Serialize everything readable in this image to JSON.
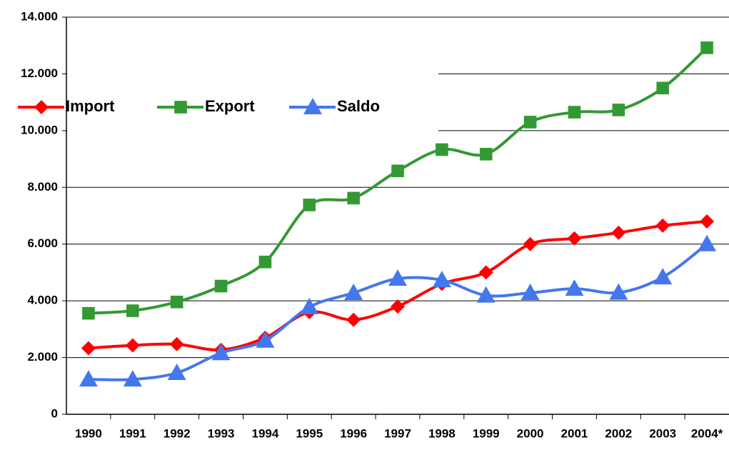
{
  "chart_data": {
    "type": "line",
    "categories": [
      "1990",
      "1991",
      "1992",
      "1993",
      "1994",
      "1995",
      "1996",
      "1997",
      "1998",
      "1999",
      "2000",
      "2001",
      "2002",
      "2003",
      "2004*"
    ],
    "series": [
      {
        "name": "Import",
        "color": "#ff0000",
        "marker": "diamond",
        "values": [
          2330,
          2430,
          2470,
          2270,
          2700,
          3600,
          3330,
          3800,
          4600,
          5000,
          6000,
          6200,
          6400,
          6650,
          6800
        ]
      },
      {
        "name": "Export",
        "color": "#339933",
        "marker": "square",
        "values": [
          3560,
          3650,
          3960,
          4520,
          5370,
          7380,
          7620,
          8580,
          9330,
          9170,
          10300,
          10650,
          10730,
          11500,
          12920
        ]
      },
      {
        "name": "Saldo",
        "color": "#4477ee",
        "marker": "triangle",
        "values": [
          1230,
          1230,
          1460,
          2160,
          2600,
          3780,
          4280,
          4780,
          4730,
          4190,
          4280,
          4430,
          4290,
          4830,
          6000
        ]
      }
    ],
    "ylim": [
      0,
      14000
    ],
    "yticks": [
      0,
      {
        "value": 2000,
        "label": "2.000"
      },
      {
        "value": 4000,
        "label": "4.000"
      },
      {
        "value": 6000,
        "label": "6.000"
      },
      {
        "value": 8000,
        "label": "8.000"
      },
      {
        "value": 10000,
        "label": "10.000"
      },
      {
        "value": 12000,
        "label": "12.000"
      },
      {
        "value": 14000,
        "label": "14.000"
      }
    ],
    "grid": true,
    "legend": "top-left"
  }
}
